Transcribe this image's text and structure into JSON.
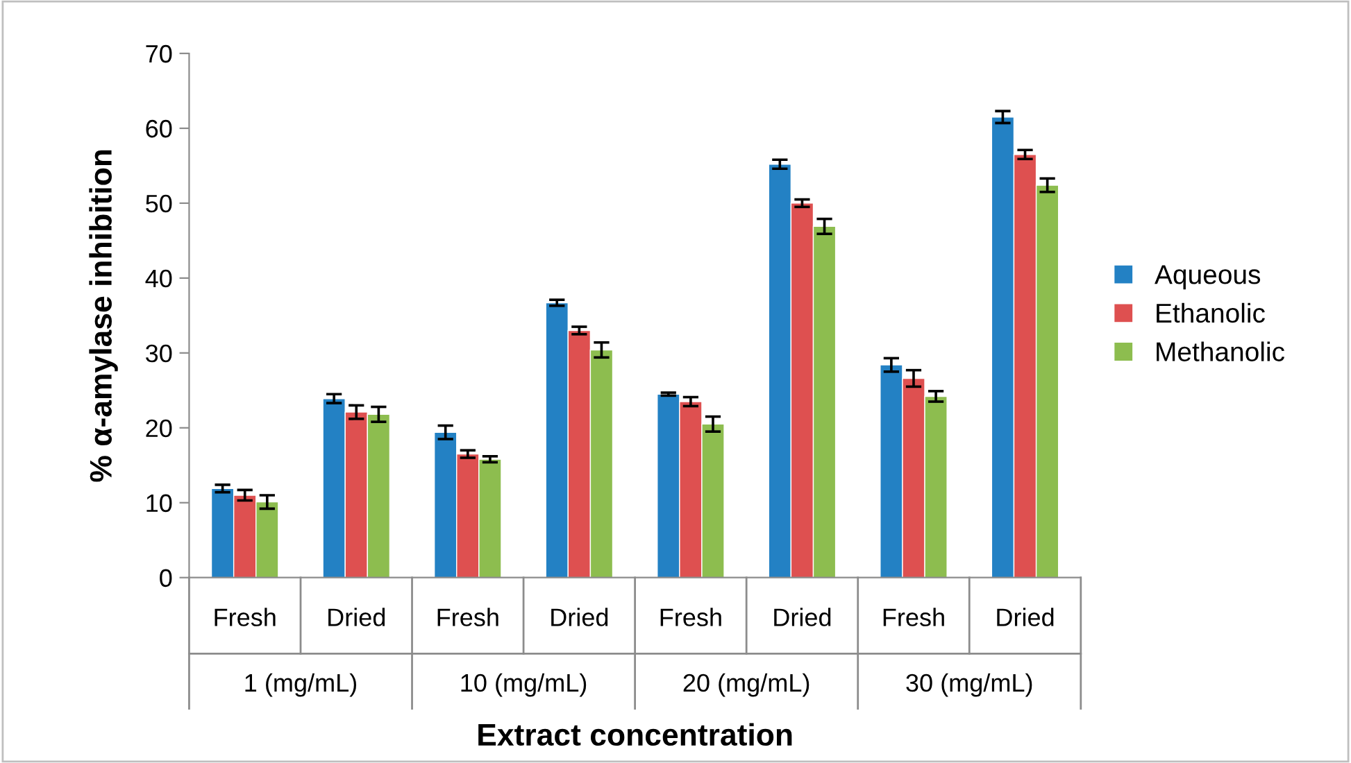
{
  "chart_data": {
    "type": "bar",
    "xlabel": "Extract concentration",
    "ylabel": "% α-amylase inhibition",
    "categories": [
      "Fresh",
      "Dried",
      "Fresh",
      "Dried",
      "Fresh",
      "Dried",
      "Fresh",
      "Dried"
    ],
    "annotations": [
      "1 (mg/mL)",
      "10 (mg/mL)",
      "20 (mg/mL)",
      "30 (mg/mL)"
    ],
    "series": [
      {
        "name": "Aqueous",
        "color": "#2381c4",
        "values": [
          11.9,
          23.9,
          19.4,
          36.7,
          24.5,
          55.2,
          28.4,
          61.5
        ],
        "errors": [
          0.5,
          0.6,
          0.9,
          0.4,
          0.2,
          0.6,
          0.9,
          0.8
        ]
      },
      {
        "name": "Ethanolic",
        "color": "#de5050",
        "values": [
          11.0,
          22.1,
          16.5,
          33.0,
          23.5,
          50.0,
          26.6,
          56.5
        ],
        "errors": [
          0.7,
          0.9,
          0.5,
          0.5,
          0.6,
          0.5,
          1.1,
          0.6
        ]
      },
      {
        "name": "Methanolic",
        "color": "#8dbd4f",
        "values": [
          10.1,
          21.8,
          15.8,
          30.4,
          20.5,
          46.9,
          24.2,
          52.4
        ],
        "errors": [
          0.9,
          1.0,
          0.4,
          1.0,
          1.0,
          1.0,
          0.7,
          0.9
        ]
      }
    ],
    "ylim": [
      0,
      70
    ],
    "yticks": [
      0,
      10,
      20,
      30,
      40,
      50,
      60,
      70
    ],
    "grid": false,
    "legend": "right"
  }
}
